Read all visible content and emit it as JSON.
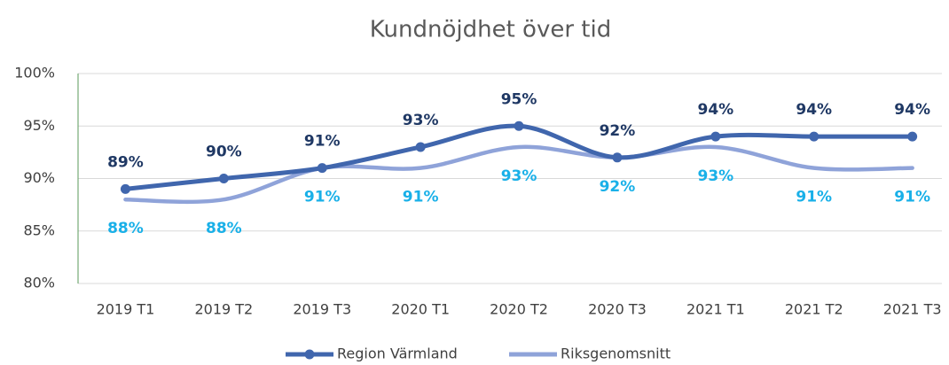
{
  "chart_data": {
    "type": "line",
    "title": "Kundnöjdhet över tid",
    "categories": [
      "2019 T1",
      "2019 T2",
      "2019 T3",
      "2020 T1",
      "2020 T2",
      "2020 T3",
      "2021 T1",
      "2021 T2",
      "2021 T3"
    ],
    "series": [
      {
        "name": "Region Värmland",
        "color": "#4066ad",
        "label_color": "#1f3864",
        "values": [
          89,
          90,
          91,
          93,
          95,
          92,
          94,
          94,
          94
        ],
        "value_labels": [
          "89%",
          "90%",
          "91%",
          "93%",
          "95%",
          "92%",
          "94%",
          "94%",
          "94%"
        ]
      },
      {
        "name": "Riksgenomsnitt",
        "color": "#8fa3d9",
        "label_color": "#19b0e8",
        "values": [
          88,
          88,
          91,
          91,
          93,
          92,
          93,
          91,
          91
        ],
        "value_labels": [
          "88%",
          "88%",
          "91%",
          "91%",
          "93%",
          "92%",
          "93%",
          "91%",
          "91%"
        ]
      }
    ],
    "ylim": [
      80,
      100
    ],
    "yticks": [
      {
        "value": 80,
        "label": "80%"
      },
      {
        "value": 85,
        "label": "85%"
      },
      {
        "value": 90,
        "label": "90%"
      },
      {
        "value": 95,
        "label": "95%"
      },
      {
        "value": 100,
        "label": "100%"
      }
    ],
    "grid": true,
    "legend": "bottom"
  }
}
